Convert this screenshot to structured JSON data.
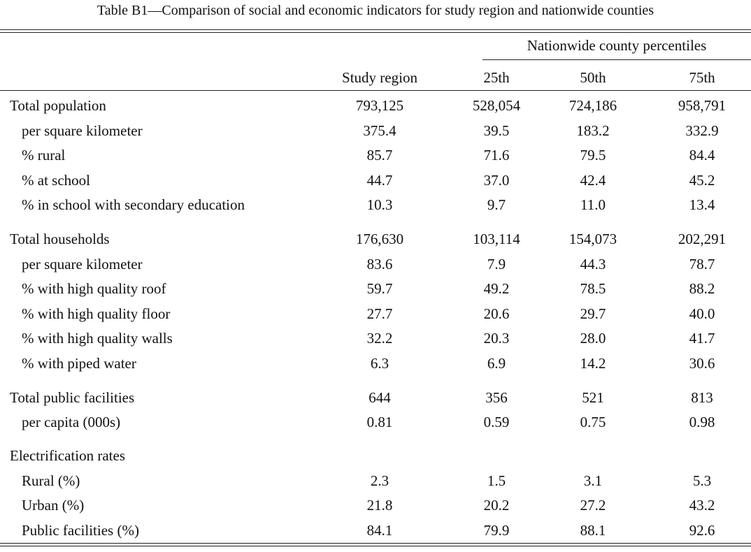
{
  "caption": "Table B1—Comparison of social and economic indicators for study region and nationwide counties",
  "group_header": "Nationwide county percentiles",
  "columns": [
    "Study region",
    "25th",
    "50th",
    "75th"
  ],
  "rows": [
    {
      "label": "Total population",
      "indent": false,
      "values": [
        "793,125",
        "528,054",
        "724,186",
        "958,791"
      ]
    },
    {
      "label": "per square kilometer",
      "indent": true,
      "values": [
        "375.4",
        "39.5",
        "183.2",
        "332.9"
      ]
    },
    {
      "label": "% rural",
      "indent": true,
      "values": [
        "85.7",
        "71.6",
        "79.5",
        "84.4"
      ]
    },
    {
      "label": "% at school",
      "indent": true,
      "values": [
        "44.7",
        "37.0",
        "42.4",
        "45.2"
      ]
    },
    {
      "label": "% in school with secondary education",
      "indent": true,
      "values": [
        "10.3",
        "9.7",
        "11.0",
        "13.4"
      ]
    },
    {
      "label": "Total households",
      "indent": false,
      "values": [
        "176,630",
        "103,114",
        "154,073",
        "202,291"
      ]
    },
    {
      "label": "per square kilometer",
      "indent": true,
      "values": [
        "83.6",
        "7.9",
        "44.3",
        "78.7"
      ]
    },
    {
      "label": "% with high quality roof",
      "indent": true,
      "values": [
        "59.7",
        "49.2",
        "78.5",
        "88.2"
      ]
    },
    {
      "label": "% with high quality floor",
      "indent": true,
      "values": [
        "27.7",
        "20.6",
        "29.7",
        "40.0"
      ]
    },
    {
      "label": "% with high quality walls",
      "indent": true,
      "values": [
        "32.2",
        "20.3",
        "28.0",
        "41.7"
      ]
    },
    {
      "label": "% with piped water",
      "indent": true,
      "values": [
        "6.3",
        "6.9",
        "14.2",
        "30.6"
      ]
    },
    {
      "label": "Total public facilities",
      "indent": false,
      "values": [
        "644",
        "356",
        "521",
        "813"
      ]
    },
    {
      "label": "per capita (000s)",
      "indent": true,
      "values": [
        "0.81",
        "0.59",
        "0.75",
        "0.98"
      ]
    },
    {
      "label": "Electrification rates",
      "indent": false,
      "values": [
        "",
        "",
        "",
        ""
      ]
    },
    {
      "label": "Rural (%)",
      "indent": true,
      "values": [
        "2.3",
        "1.5",
        "3.1",
        "5.3"
      ]
    },
    {
      "label": "Urban (%)",
      "indent": true,
      "values": [
        "21.8",
        "20.2",
        "27.2",
        "43.2"
      ]
    },
    {
      "label": "Public facilities (%)",
      "indent": true,
      "values": [
        "84.1",
        "79.9",
        "88.1",
        "92.6"
      ]
    }
  ]
}
